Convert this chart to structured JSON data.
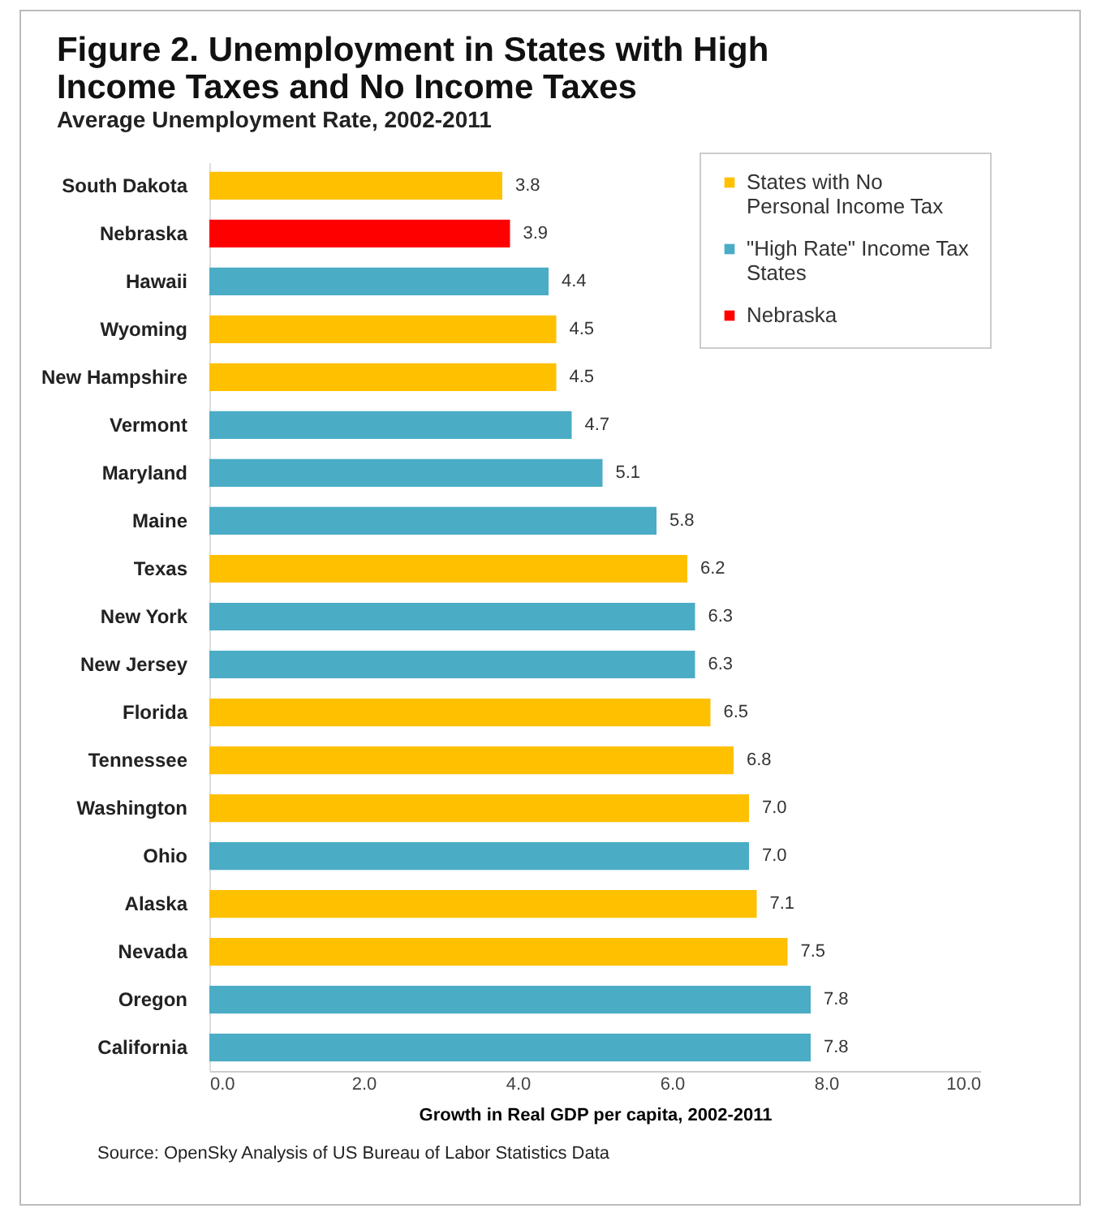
{
  "chart_data": {
    "type": "bar",
    "orientation": "horizontal",
    "title": "Figure 2. Unemployment in States with High Income Taxes and No Income Taxes",
    "subtitle": "Average Unemployment Rate, 2002-2011",
    "xlabel": "Growth in Real GDP per capita, 2002-2011",
    "categories": [
      "South Dakota",
      "Nebraska",
      "Hawaii",
      "Wyoming",
      "New Hampshire",
      "Vermont",
      "Maryland",
      "Maine",
      "Texas",
      "New York",
      "New Jersey",
      "Florida",
      "Tennessee",
      "Washington",
      "Ohio",
      "Alaska",
      "Nevada",
      "Oregon",
      "California"
    ],
    "series": [
      {
        "name": "States with No Personal Income Tax",
        "color": "#ffc000",
        "values": [
          3.8,
          null,
          null,
          4.5,
          4.5,
          null,
          null,
          null,
          6.2,
          null,
          null,
          6.5,
          6.8,
          7.0,
          null,
          7.1,
          7.5,
          null,
          null
        ],
        "value_labels": [
          "3.8",
          null,
          null,
          "4.5",
          "4.5",
          null,
          null,
          null,
          "6.2",
          null,
          null,
          "6.5",
          "6.8",
          "7.0",
          null,
          "7.1",
          "7.5",
          null,
          null
        ]
      },
      {
        "name": "\"High Rate\" Income Tax States",
        "color": "#4bacc6",
        "values": [
          null,
          null,
          4.4,
          null,
          null,
          4.7,
          5.1,
          5.8,
          null,
          6.3,
          6.3,
          null,
          null,
          null,
          7.0,
          null,
          null,
          7.8,
          7.8
        ],
        "value_labels": [
          null,
          null,
          "4.4",
          null,
          null,
          "4.7",
          "5.1",
          "5.8",
          null,
          "6.3",
          "6.3",
          null,
          null,
          null,
          "7.0",
          null,
          null,
          "7.8",
          "7.8"
        ]
      },
      {
        "name": "Nebraska",
        "color": "#ff0000",
        "values": [
          null,
          3.9,
          null,
          null,
          null,
          null,
          null,
          null,
          null,
          null,
          null,
          null,
          null,
          null,
          null,
          null,
          null,
          null,
          null
        ],
        "value_labels": [
          null,
          "3.9",
          null,
          null,
          null,
          null,
          null,
          null,
          null,
          null,
          null,
          null,
          null,
          null,
          null,
          null,
          null,
          null,
          null
        ]
      }
    ],
    "xlim": [
      0,
      10
    ],
    "xticks": [
      {
        "value": 0,
        "label": "0.0"
      },
      {
        "value": 2,
        "label": "2.0"
      },
      {
        "value": 4,
        "label": "4.0"
      },
      {
        "value": 6,
        "label": "6.0"
      },
      {
        "value": 8,
        "label": "8.0"
      },
      {
        "value": 10,
        "label": "10.0"
      }
    ],
    "legend": "top right",
    "annotations": [
      "Source: OpenSky Analysis of US Bureau of Labor Statistics Data"
    ]
  }
}
